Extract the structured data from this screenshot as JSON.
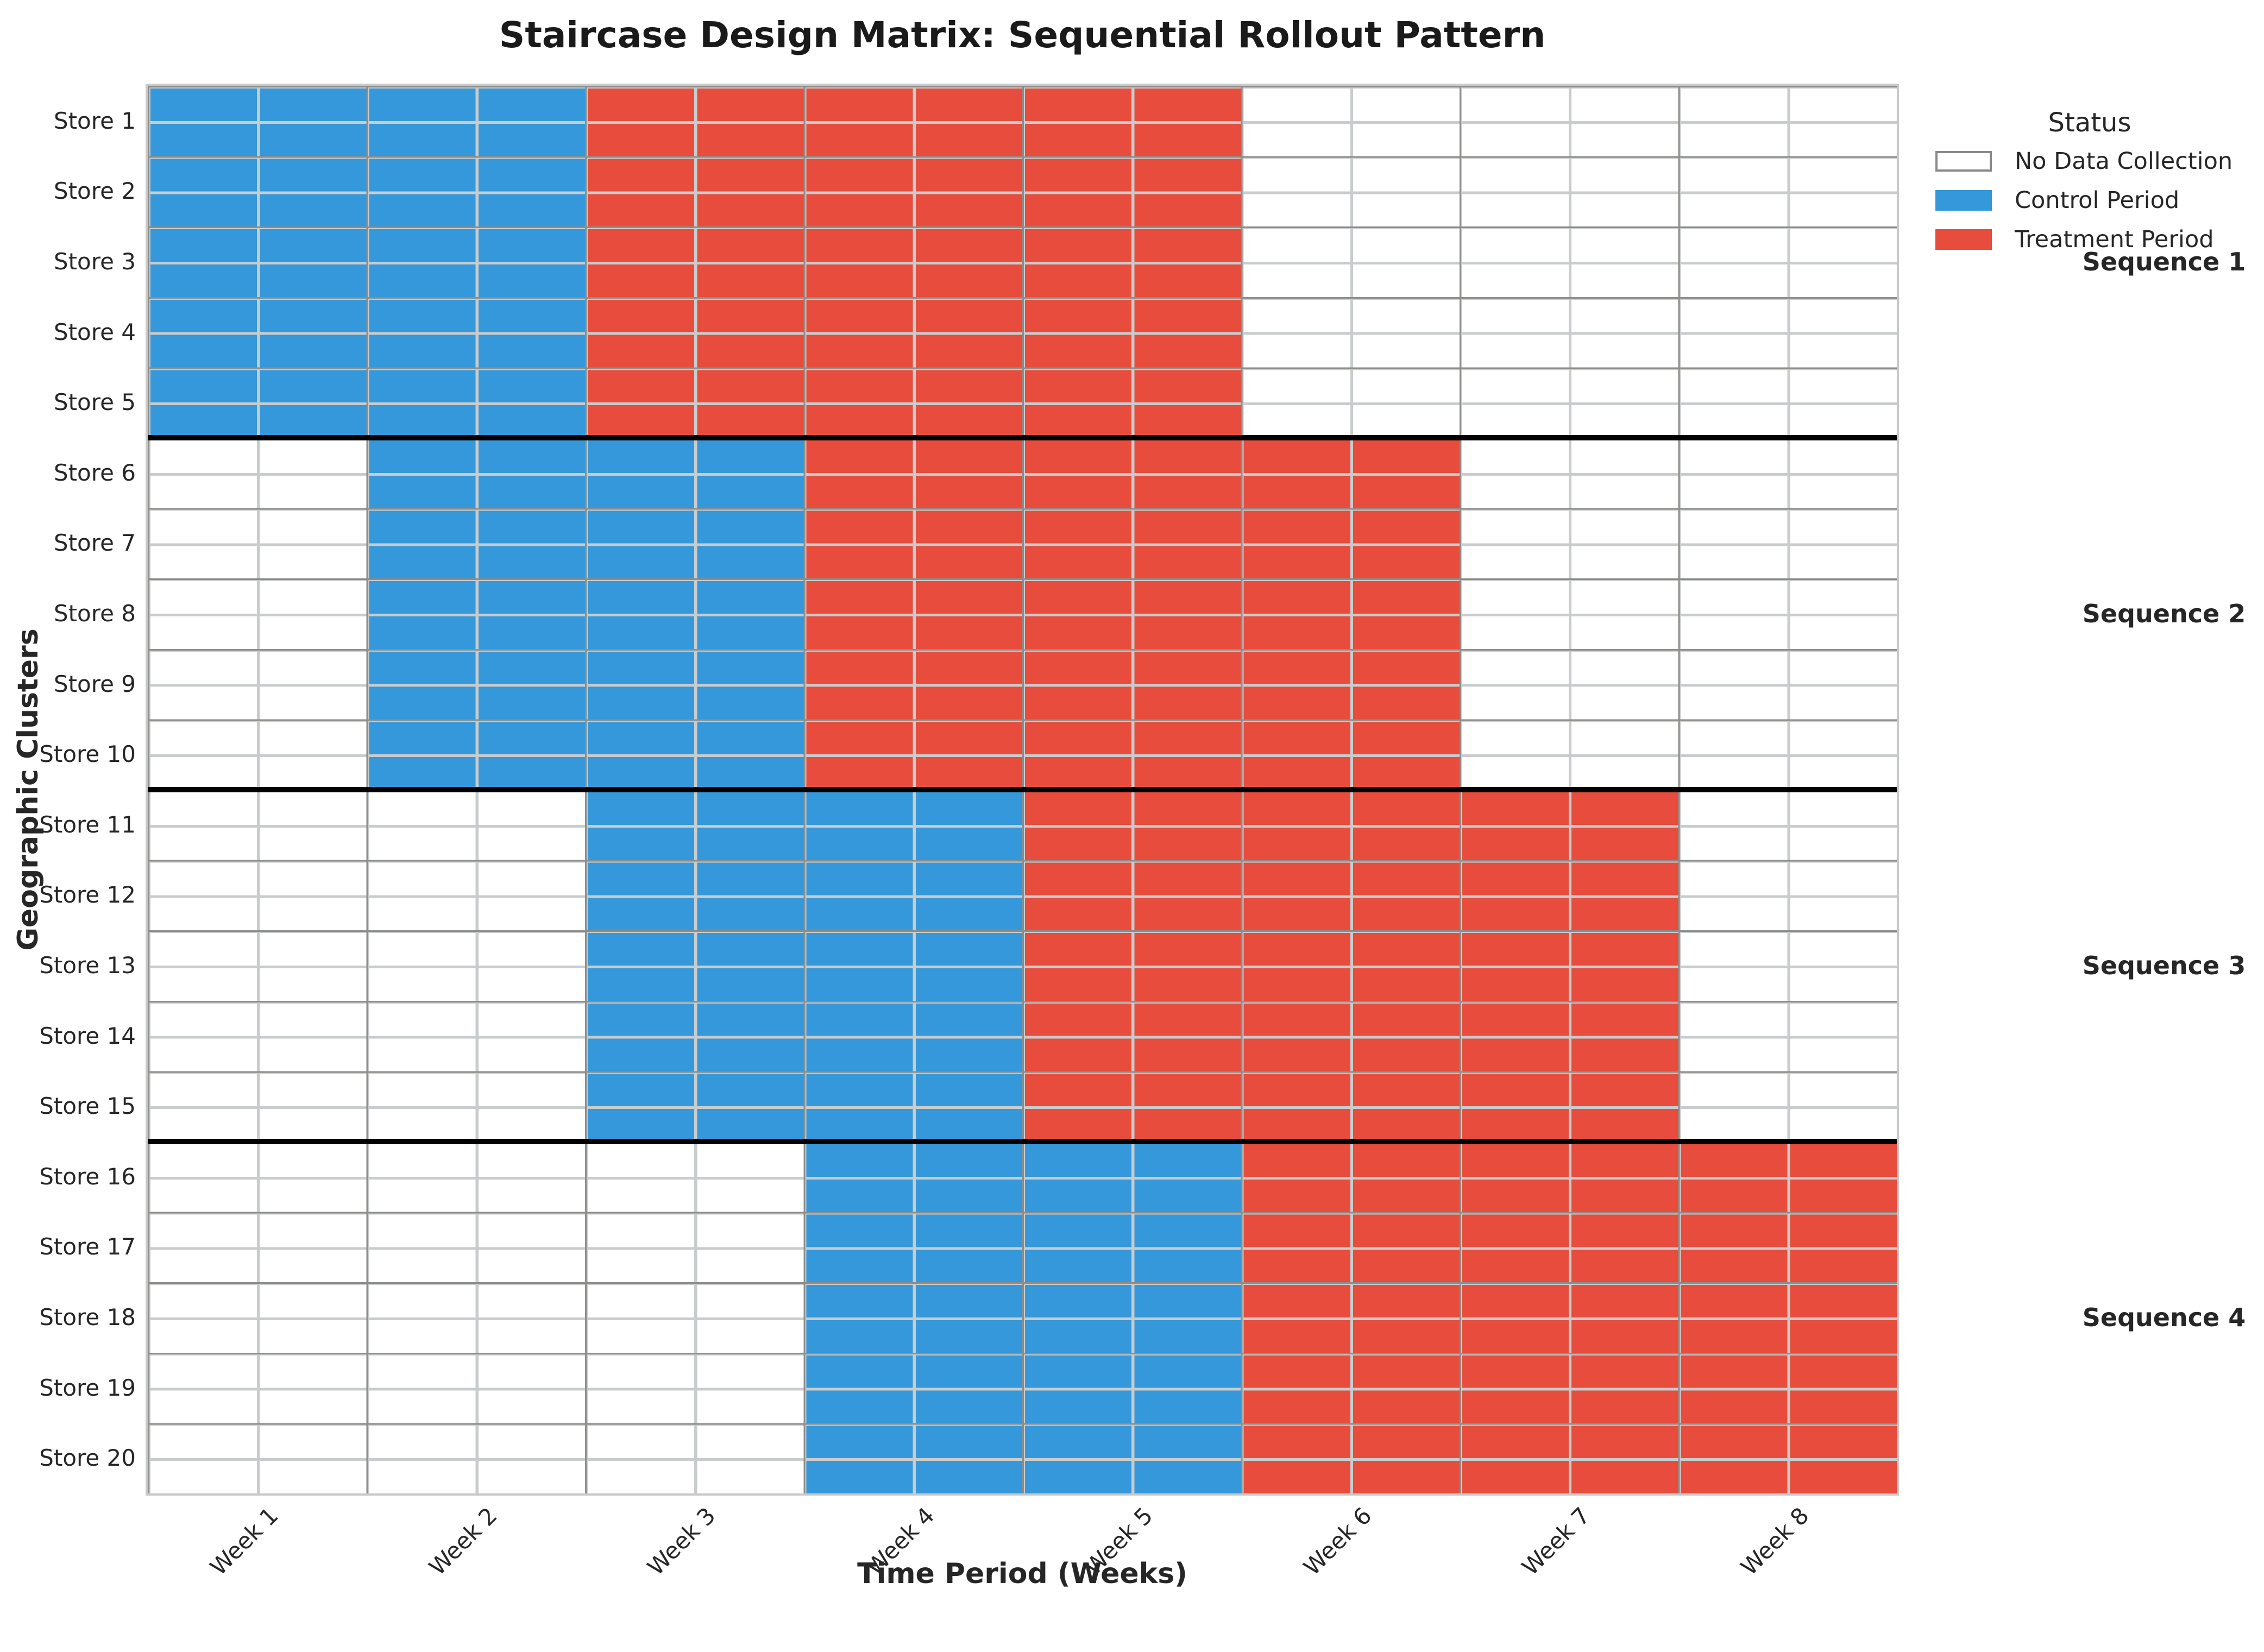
{
  "title": "Staircase Design Matrix: Sequential Rollout Pattern",
  "axes": {
    "x_title": "Time Period (Weeks)",
    "y_title": "Geographic Clusters",
    "x_ticks": [
      "Week 1",
      "Week 2",
      "Week 3",
      "Week 4",
      "Week 5",
      "Week 6",
      "Week 7",
      "Week 8"
    ],
    "y_ticks": [
      "Store 1",
      "Store 2",
      "Store 3",
      "Store 4",
      "Store 5",
      "Store 6",
      "Store 7",
      "Store 8",
      "Store 9",
      "Store 10",
      "Store 11",
      "Store 12",
      "Store 13",
      "Store 14",
      "Store 15",
      "Store 16",
      "Store 17",
      "Store 18",
      "Store 19",
      "Store 20"
    ]
  },
  "legend": {
    "title": "Status",
    "items": [
      {
        "label": "No Data Collection",
        "color": "#ffffff",
        "border": "#8a8a8a"
      },
      {
        "label": "Control Period",
        "color": "#3498db",
        "border": "#3498db"
      },
      {
        "label": "Treatment Period",
        "color": "#e74c3c",
        "border": "#e74c3c"
      }
    ]
  },
  "sequence_labels": [
    "Sequence 1",
    "Sequence 2",
    "Sequence 3",
    "Sequence 4"
  ],
  "colors": {
    "control": "#3498db",
    "treatment": "#e74c3c",
    "no_data": "#ffffff",
    "separator": "#000000",
    "grid_minor": "#c9cccd",
    "grid_major": "#8d8d89",
    "plot_border": "#c9c9c9",
    "text": "#262626"
  },
  "chart_data": {
    "type": "heatmap",
    "title": "Staircase Design Matrix: Sequential Rollout Pattern",
    "xlabel": "Time Period (Weeks)",
    "ylabel": "Geographic Clusters",
    "x_categories": [
      "Week 1",
      "Week 2",
      "Week 3",
      "Week 4",
      "Week 5",
      "Week 6",
      "Week 7",
      "Week 8"
    ],
    "y_categories": [
      "Store 1",
      "Store 2",
      "Store 3",
      "Store 4",
      "Store 5",
      "Store 6",
      "Store 7",
      "Store 8",
      "Store 9",
      "Store 10",
      "Store 11",
      "Store 12",
      "Store 13",
      "Store 14",
      "Store 15",
      "Store 16",
      "Store 17",
      "Store 18",
      "Store 19",
      "Store 20"
    ],
    "status_codes": {
      "0": "No Data Collection",
      "1": "Control Period",
      "2": "Treatment Period"
    },
    "legend_position": "outside upper right",
    "grid": true,
    "sequences": [
      {
        "label": "Sequence 1",
        "stores": [
          "Store 1",
          "Store 2",
          "Store 3",
          "Store 4",
          "Store 5"
        ],
        "control_weeks": [
          1,
          2
        ],
        "treatment_weeks": [
          3,
          4,
          5
        ]
      },
      {
        "label": "Sequence 2",
        "stores": [
          "Store 6",
          "Store 7",
          "Store 8",
          "Store 9",
          "Store 10"
        ],
        "control_weeks": [
          2,
          3
        ],
        "treatment_weeks": [
          4,
          5,
          6
        ]
      },
      {
        "label": "Sequence 3",
        "stores": [
          "Store 11",
          "Store 12",
          "Store 13",
          "Store 14",
          "Store 15"
        ],
        "control_weeks": [
          3,
          4
        ],
        "treatment_weeks": [
          5,
          6,
          7
        ]
      },
      {
        "label": "Sequence 4",
        "stores": [
          "Store 16",
          "Store 17",
          "Store 18",
          "Store 19",
          "Store 20"
        ],
        "control_weeks": [
          4,
          5
        ],
        "treatment_weeks": [
          6,
          7,
          8
        ]
      }
    ],
    "matrix": [
      [
        1,
        1,
        2,
        2,
        2,
        0,
        0,
        0
      ],
      [
        1,
        1,
        2,
        2,
        2,
        0,
        0,
        0
      ],
      [
        1,
        1,
        2,
        2,
        2,
        0,
        0,
        0
      ],
      [
        1,
        1,
        2,
        2,
        2,
        0,
        0,
        0
      ],
      [
        1,
        1,
        2,
        2,
        2,
        0,
        0,
        0
      ],
      [
        0,
        1,
        1,
        2,
        2,
        2,
        0,
        0
      ],
      [
        0,
        1,
        1,
        2,
        2,
        2,
        0,
        0
      ],
      [
        0,
        1,
        1,
        2,
        2,
        2,
        0,
        0
      ],
      [
        0,
        1,
        1,
        2,
        2,
        2,
        0,
        0
      ],
      [
        0,
        1,
        1,
        2,
        2,
        2,
        0,
        0
      ],
      [
        0,
        0,
        1,
        1,
        2,
        2,
        2,
        0
      ],
      [
        0,
        0,
        1,
        1,
        2,
        2,
        2,
        0
      ],
      [
        0,
        0,
        1,
        1,
        2,
        2,
        2,
        0
      ],
      [
        0,
        0,
        1,
        1,
        2,
        2,
        2,
        0
      ],
      [
        0,
        0,
        1,
        1,
        2,
        2,
        2,
        0
      ],
      [
        0,
        0,
        0,
        1,
        1,
        2,
        2,
        2
      ],
      [
        0,
        0,
        0,
        1,
        1,
        2,
        2,
        2
      ],
      [
        0,
        0,
        0,
        1,
        1,
        2,
        2,
        2
      ],
      [
        0,
        0,
        0,
        1,
        1,
        2,
        2,
        2
      ],
      [
        0,
        0,
        0,
        1,
        1,
        2,
        2,
        2
      ]
    ]
  }
}
